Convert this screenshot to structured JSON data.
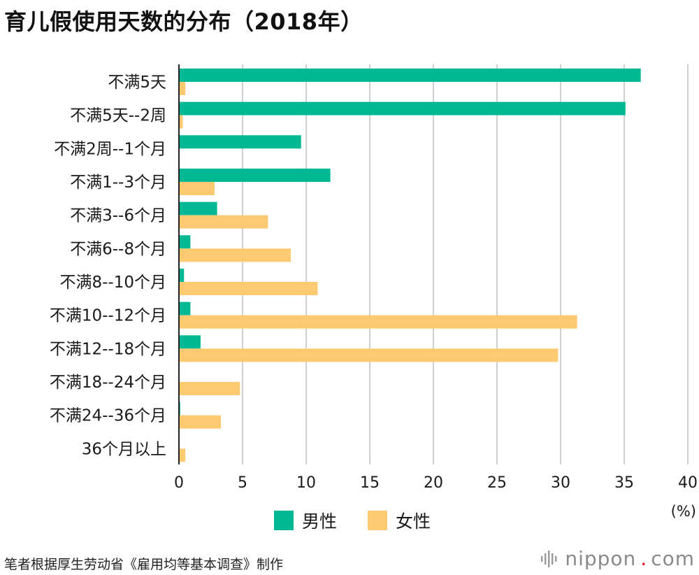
{
  "title": "育儿假使用天数的分布（2018年）",
  "source": "笔者根据厚生劳动省《雇用均等基本调查》制作",
  "brand": {
    "name": "nippon",
    "dot": ".",
    "suffix": "com"
  },
  "colors": {
    "male": "#00b894",
    "female": "#fdca71",
    "grid": "#cfcfcf",
    "axis": "#222222",
    "text": "#1a1a1a"
  },
  "chart_data": {
    "type": "bar",
    "orientation": "horizontal",
    "title": "育儿假使用天数的分布（2018年）",
    "unit_label": "(%)",
    "xlim": [
      0,
      40
    ],
    "x_ticks": [
      0,
      5,
      10,
      15,
      20,
      25,
      30,
      35,
      40
    ],
    "grid": true,
    "legend_position": "bottom-center",
    "categories": [
      "不满5天",
      "不满5天--2周",
      "不满2周--1个月",
      "不满1--3个月",
      "不满3--6个月",
      "不满6--8个月",
      "不满8--10个月",
      "不满10--12个月",
      "不满12--18个月",
      "不满18--24个月",
      "不满24--36个月",
      "36个月以上"
    ],
    "series": [
      {
        "name": "男性",
        "color": "#00b894",
        "values": [
          36.3,
          35.1,
          9.6,
          11.9,
          3.0,
          0.9,
          0.4,
          0.9,
          1.7,
          0.0,
          0.1,
          0.0
        ]
      },
      {
        "name": "女性",
        "color": "#fdca71",
        "values": [
          0.5,
          0.3,
          0.0,
          2.8,
          7.0,
          8.8,
          10.9,
          31.3,
          29.8,
          4.8,
          3.3,
          0.5
        ]
      }
    ]
  }
}
